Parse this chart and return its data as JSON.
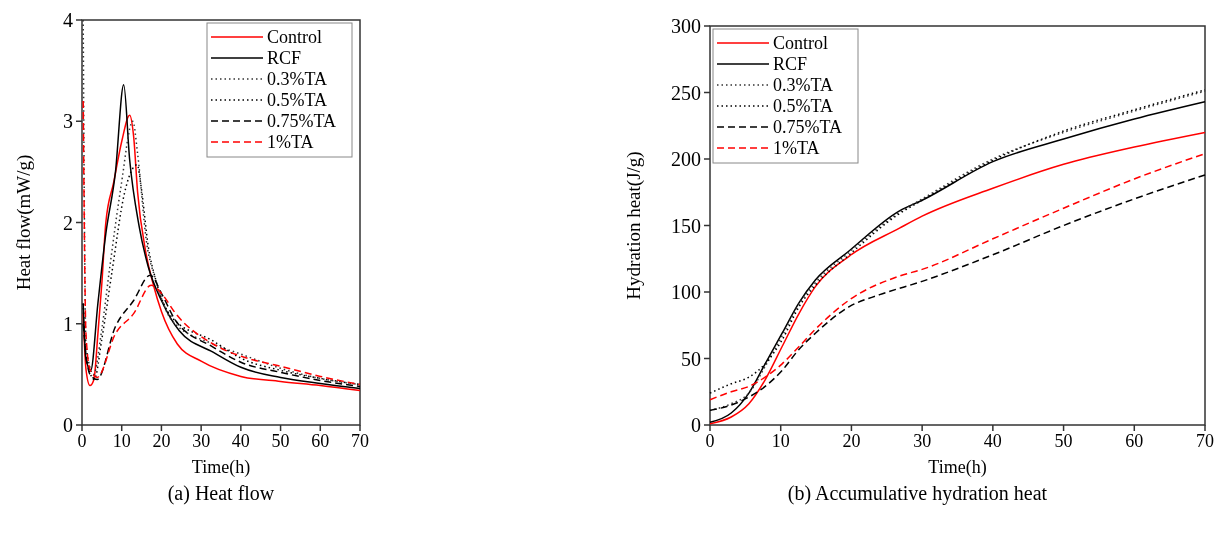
{
  "chart_data": [
    {
      "type": "line",
      "title": "(a) Heat flow",
      "xlabel": "Time(h)",
      "ylabel": "Heat flow(mW/g)",
      "xlim": [
        0,
        70
      ],
      "ylim": [
        0,
        4
      ],
      "xticks": [
        0,
        10,
        20,
        30,
        40,
        50,
        60,
        70
      ],
      "yticks": [
        0,
        1,
        2,
        3,
        4
      ],
      "legend": "top right",
      "grid": false,
      "series": [
        {
          "name": "Control",
          "color": "#ff0000",
          "line_style": "solid",
          "x": [
            0.3,
            1,
            2,
            3,
            4,
            5,
            6,
            8,
            10,
            12,
            13,
            14,
            16,
            18,
            20,
            24,
            30,
            40,
            50,
            60,
            70
          ],
          "values": [
            1.1,
            0.55,
            0.39,
            0.45,
            0.9,
            1.4,
            2.0,
            2.4,
            2.8,
            3.06,
            2.85,
            2.3,
            1.72,
            1.38,
            1.12,
            0.8,
            0.63,
            0.48,
            0.43,
            0.39,
            0.34
          ]
        },
        {
          "name": "RCF",
          "color": "#000000",
          "line_style": "solid",
          "x": [
            0.3,
            1,
            2.2,
            4,
            6,
            8.4,
            10.5,
            12,
            14.4,
            16.7,
            20,
            24.5,
            33,
            40,
            50,
            60,
            70
          ],
          "values": [
            1.2,
            0.65,
            0.54,
            1.2,
            1.89,
            2.49,
            3.36,
            2.62,
            1.96,
            1.56,
            1.23,
            0.93,
            0.72,
            0.57,
            0.47,
            0.41,
            0.36
          ]
        },
        {
          "name": "0.3%TA",
          "color": "#333333",
          "line_style": "dotted",
          "x": [
            0.3,
            1,
            2.9,
            5,
            7,
            9.8,
            12.8,
            14,
            16.2,
            18.6,
            22.7,
            33,
            40,
            50,
            60,
            70
          ],
          "values": [
            4.0,
            0.8,
            0.5,
            0.95,
            1.56,
            2.35,
            3.0,
            2.68,
            1.82,
            1.43,
            1.03,
            0.8,
            0.7,
            0.56,
            0.46,
            0.4
          ]
        },
        {
          "name": "0.5%TA",
          "color": "#000000",
          "line_style": "dotted",
          "x": [
            0.3,
            1,
            3.1,
            5,
            7.5,
            10.7,
            13.9,
            14.9,
            16.7,
            18.6,
            22.7,
            33,
            40,
            50,
            60,
            70
          ],
          "values": [
            1.2,
            0.7,
            0.45,
            0.85,
            1.5,
            2.29,
            2.57,
            2.35,
            1.76,
            1.43,
            1.06,
            0.83,
            0.66,
            0.54,
            0.46,
            0.4
          ]
        },
        {
          "name": "0.75%TA",
          "color": "#000000",
          "line_style": "dashed",
          "x": [
            0.3,
            1,
            2,
            3.8,
            8.4,
            13,
            17.2,
            20,
            23.6,
            33,
            40,
            50,
            60,
            70
          ],
          "values": [
            1.0,
            0.7,
            0.5,
            0.45,
            0.97,
            1.23,
            1.48,
            1.3,
            1.03,
            0.77,
            0.62,
            0.52,
            0.44,
            0.38
          ]
        },
        {
          "name": "1%TA",
          "color": "#ff0000",
          "line_style": "dashed",
          "x": [
            0.3,
            1,
            2,
            3.8,
            8.4,
            13,
            17.4,
            20,
            23.6,
            33,
            40,
            50,
            60,
            70
          ],
          "values": [
            3.2,
            0.9,
            0.55,
            0.47,
            0.9,
            1.1,
            1.38,
            1.3,
            1.1,
            0.8,
            0.68,
            0.58,
            0.48,
            0.4
          ]
        }
      ]
    },
    {
      "type": "line",
      "title": "(b) Accumulative hydration heat",
      "xlabel": "Time(h)",
      "ylabel": "Hydration heat(J/g)",
      "xlim": [
        0,
        70
      ],
      "ylim": [
        0,
        300
      ],
      "xticks": [
        0,
        10,
        20,
        30,
        40,
        50,
        60,
        70
      ],
      "yticks": [
        0,
        50,
        100,
        150,
        200,
        250,
        300
      ],
      "legend": "top left",
      "grid": false,
      "series": [
        {
          "name": "Control",
          "color": "#ff0000",
          "line_style": "solid",
          "x": [
            0,
            3,
            5.5,
            7.8,
            10.2,
            12.6,
            14.9,
            19.7,
            26.8,
            30,
            40,
            50,
            60,
            70
          ],
          "values": [
            1,
            6,
            16,
            34,
            59,
            84,
            104,
            127,
            148,
            157,
            178,
            196,
            209,
            220
          ]
        },
        {
          "name": "RCF",
          "color": "#000000",
          "line_style": "solid",
          "x": [
            0,
            3,
            5.5,
            7.8,
            10.2,
            12.6,
            14.9,
            19.7,
            26.8,
            30,
            40,
            50,
            60,
            70
          ],
          "values": [
            2,
            9,
            24,
            46,
            69,
            92,
            109,
            131,
            161,
            169,
            198,
            215,
            230,
            243
          ]
        },
        {
          "name": "0.3%TA",
          "color": "#333333",
          "line_style": "dotted",
          "x": [
            0,
            3,
            5.5,
            7.8,
            10.2,
            12.6,
            14.9,
            19.7,
            26.8,
            30,
            40,
            50,
            60,
            70
          ],
          "values": [
            11,
            16,
            24,
            44,
            67,
            91,
            107,
            130,
            160,
            170,
            200,
            220,
            236,
            251
          ]
        },
        {
          "name": "0.5%TA",
          "color": "#000000",
          "line_style": "dotted",
          "x": [
            0,
            3,
            5.5,
            7.8,
            10.2,
            12.6,
            14.9,
            19.7,
            26.8,
            30,
            40,
            50,
            60,
            70
          ],
          "values": [
            24,
            31,
            36,
            46,
            64,
            89,
            105,
            128,
            159,
            169,
            199,
            221,
            237,
            252
          ]
        },
        {
          "name": "0.75%TA",
          "color": "#000000",
          "line_style": "dashed",
          "x": [
            0,
            3,
            5.5,
            7.8,
            10.2,
            12.6,
            14.9,
            19.7,
            24,
            30,
            40,
            50,
            60,
            70
          ],
          "values": [
            11,
            15,
            21,
            29,
            41,
            57,
            69,
            89,
            98,
            108,
            128,
            150,
            170,
            188
          ]
        },
        {
          "name": "1%TA",
          "color": "#ff0000",
          "line_style": "dashed",
          "x": [
            0,
            3,
            5.5,
            7.8,
            10.2,
            12.6,
            14.9,
            19.7,
            26.8,
            30,
            40,
            50,
            60,
            70
          ],
          "values": [
            19,
            25,
            29,
            36,
            46,
            59,
            72,
            94,
            112,
            117,
            140,
            163,
            185,
            204
          ]
        }
      ]
    }
  ]
}
